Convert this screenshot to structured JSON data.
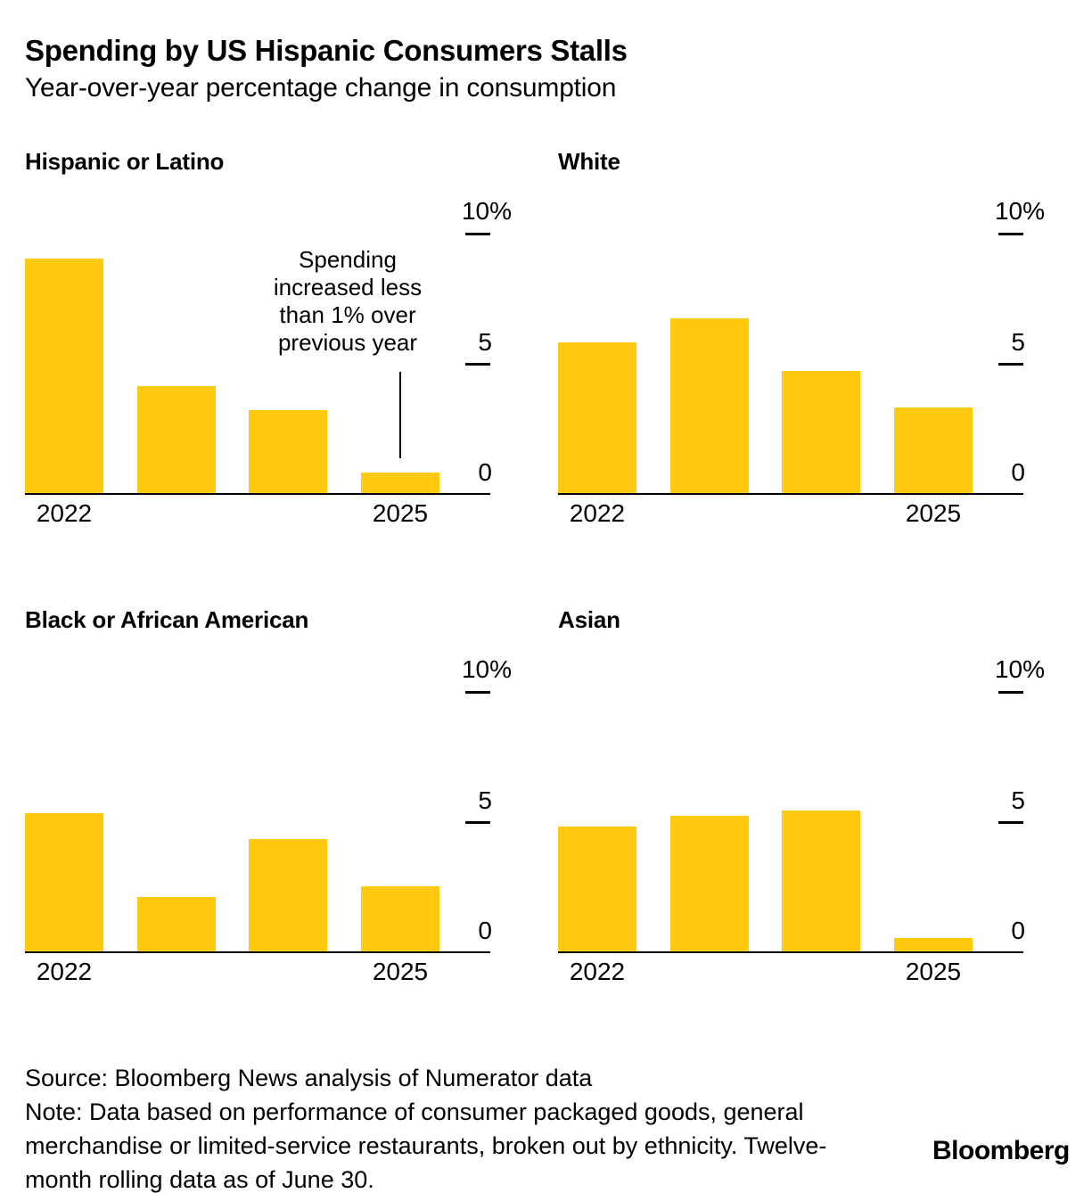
{
  "header": {
    "title": "Spending by US Hispanic Consumers Stalls",
    "subtitle": "Year-over-year percentage change in consumption"
  },
  "colors": {
    "bar": "#FFC90D",
    "axis": "#000000",
    "text": "#000000",
    "background": "#FFFFFF"
  },
  "chart_data": [
    {
      "type": "bar",
      "title": "Hispanic or Latino",
      "categories": [
        "2022",
        "2023",
        "2024",
        "2025"
      ],
      "values": [
        9.0,
        4.1,
        3.2,
        0.8
      ],
      "ylim": [
        0,
        10
      ],
      "yticks": [
        10,
        5,
        0
      ],
      "ytick_labels": [
        "10%",
        "5",
        "0"
      ],
      "x_labels_shown": [
        "2022",
        "2025"
      ],
      "legend": "none",
      "grid": "off",
      "annotation": {
        "lines": [
          "Spending",
          "increased less",
          "than 1% over",
          "previous year"
        ],
        "target_category": "2025"
      }
    },
    {
      "type": "bar",
      "title": "White",
      "categories": [
        "2022",
        "2023",
        "2024",
        "2025"
      ],
      "values": [
        5.8,
        6.7,
        4.7,
        3.3
      ],
      "ylim": [
        0,
        10
      ],
      "yticks": [
        10,
        5,
        0
      ],
      "ytick_labels": [
        "10%",
        "5",
        "0"
      ],
      "x_labels_shown": [
        "2022",
        "2025"
      ],
      "legend": "none",
      "grid": "off"
    },
    {
      "type": "bar",
      "title": "Black or African American",
      "categories": [
        "2022",
        "2023",
        "2024",
        "2025"
      ],
      "values": [
        5.3,
        2.1,
        4.3,
        2.5
      ],
      "ylim": [
        0,
        10
      ],
      "yticks": [
        10,
        5,
        0
      ],
      "ytick_labels": [
        "10%",
        "5",
        "0"
      ],
      "x_labels_shown": [
        "2022",
        "2025"
      ],
      "legend": "none",
      "grid": "off"
    },
    {
      "type": "bar",
      "title": "Asian",
      "categories": [
        "2022",
        "2023",
        "2024",
        "2025"
      ],
      "values": [
        4.8,
        5.2,
        5.4,
        0.5
      ],
      "ylim": [
        0,
        10
      ],
      "yticks": [
        10,
        5,
        0
      ],
      "ytick_labels": [
        "10%",
        "5",
        "0"
      ],
      "x_labels_shown": [
        "2022",
        "2025"
      ],
      "legend": "none",
      "grid": "off"
    }
  ],
  "footer": {
    "source": "Source: Bloomberg News analysis of Numerator data",
    "note_lines": [
      "Note: Data based on performance of consumer packaged goods, general",
      "merchandise or limited-service restaurants, broken out by ethnicity. Twelve-",
      "month rolling data as of June 30."
    ],
    "logo": "Bloomberg"
  }
}
